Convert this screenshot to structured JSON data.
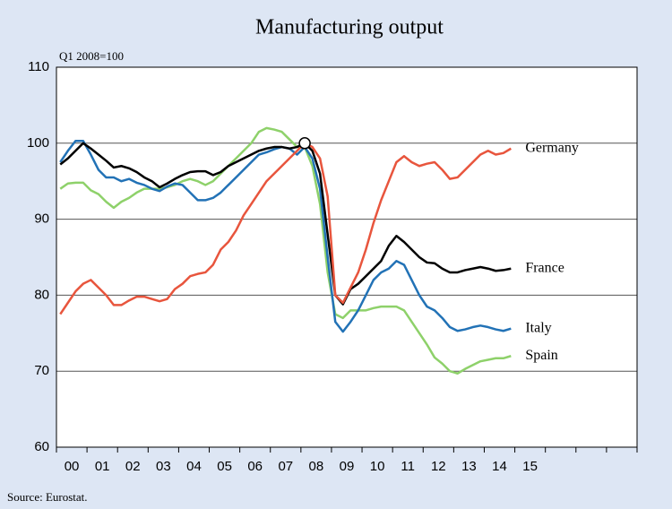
{
  "chart_data": {
    "type": "line",
    "title": "Manufacturing output",
    "y_unit": "Q1 2008=100",
    "source": "Source: Eurostat.",
    "x": [
      2000.125,
      2000.375,
      2000.625,
      2000.875,
      2001.125,
      2001.375,
      2001.625,
      2001.875,
      2002.125,
      2002.375,
      2002.625,
      2002.875,
      2003.125,
      2003.375,
      2003.625,
      2003.875,
      2004.125,
      2004.375,
      2004.625,
      2004.875,
      2005.125,
      2005.375,
      2005.625,
      2005.875,
      2006.125,
      2006.375,
      2006.625,
      2006.875,
      2007.125,
      2007.375,
      2007.625,
      2007.875,
      2008.125,
      2008.375,
      2008.625,
      2008.875,
      2009.125,
      2009.375,
      2009.625,
      2009.875,
      2010.125,
      2010.375,
      2010.625,
      2010.875,
      2011.125,
      2011.375,
      2011.625,
      2011.875,
      2012.125,
      2012.375,
      2012.625,
      2012.875,
      2013.125,
      2013.375,
      2013.625,
      2013.875,
      2014.125,
      2014.375,
      2014.625,
      2014.875
    ],
    "series": [
      {
        "name": "Germany",
        "color": "#e8553d",
        "values": [
          77.5,
          79,
          80.5,
          81.5,
          82,
          81,
          80,
          78.7,
          78.7,
          79.3,
          79.8,
          79.8,
          79.5,
          79.2,
          79.5,
          80.8,
          81.5,
          82.5,
          82.8,
          83,
          84,
          86,
          87,
          88.5,
          90.5,
          92,
          93.5,
          95,
          96,
          97,
          98,
          99,
          100,
          99.5,
          98,
          93,
          80,
          79,
          81,
          83,
          86,
          89.5,
          92.5,
          95,
          97.5,
          98.3,
          97.5,
          97,
          97.3,
          97.5,
          96.5,
          95.3,
          95.5,
          96.5,
          97.5,
          98.5,
          99,
          98.5,
          98.7,
          99.3
        ]
      },
      {
        "name": "France",
        "color": "#000000",
        "values": [
          97.2,
          98,
          99,
          100,
          99.3,
          98.5,
          97.7,
          96.8,
          97,
          96.7,
          96.2,
          95.5,
          95,
          94.2,
          94.7,
          95.3,
          95.8,
          96.2,
          96.3,
          96.3,
          95.8,
          96.2,
          97,
          97.5,
          98,
          98.5,
          99,
          99.3,
          99.5,
          99.5,
          99.3,
          99.5,
          100,
          99,
          96,
          88,
          80,
          78.8,
          80.8,
          81.5,
          82.5,
          83.5,
          84.5,
          86.5,
          87.8,
          87,
          86,
          85,
          84.3,
          84.2,
          83.5,
          83,
          83,
          83.3,
          83.5,
          83.7,
          83.5,
          83.2,
          83.3,
          83.5
        ]
      },
      {
        "name": "Italy",
        "color": "#2272b6",
        "values": [
          97.5,
          99,
          100.3,
          100.3,
          98.5,
          96.5,
          95.5,
          95.5,
          95,
          95.3,
          94.8,
          94.5,
          94,
          93.7,
          94.3,
          94.7,
          94.5,
          93.5,
          92.5,
          92.5,
          92.8,
          93.5,
          94.5,
          95.5,
          96.5,
          97.5,
          98.5,
          98.8,
          99.2,
          99.5,
          99.3,
          98.5,
          99.5,
          98,
          94,
          85,
          76.5,
          75.2,
          76.5,
          78,
          80,
          82,
          83,
          83.5,
          84.5,
          84,
          82,
          80,
          78.5,
          78,
          77,
          75.8,
          75.3,
          75.5,
          75.8,
          76,
          75.8,
          75.5,
          75.3,
          75.6
        ]
      },
      {
        "name": "Spain",
        "color": "#8ed16a",
        "values": [
          94,
          94.7,
          94.8,
          94.8,
          93.8,
          93.3,
          92.3,
          91.5,
          92.3,
          92.8,
          93.5,
          94,
          94,
          94,
          94.2,
          94.5,
          95,
          95.3,
          95,
          94.5,
          95,
          96,
          97,
          98,
          99,
          100,
          101.5,
          102,
          101.8,
          101.5,
          100.5,
          99.5,
          99.5,
          97,
          92,
          83,
          77.5,
          77,
          78,
          78,
          78,
          78.3,
          78.5,
          78.5,
          78.5,
          78,
          76.5,
          75,
          73.5,
          71.8,
          71,
          70,
          69.7,
          70.3,
          70.8,
          71.3,
          71.5,
          71.7,
          71.7,
          72
        ]
      }
    ],
    "annotation_point": {
      "x": 2008.125,
      "y": 100
    },
    "xlim": [
      2000,
      2019
    ],
    "xticks": [
      {
        "value": 2000.5,
        "label": "00"
      },
      {
        "value": 2001.5,
        "label": "01"
      },
      {
        "value": 2002.5,
        "label": "02"
      },
      {
        "value": 2003.5,
        "label": "03"
      },
      {
        "value": 2004.5,
        "label": "04"
      },
      {
        "value": 2005.5,
        "label": "05"
      },
      {
        "value": 2006.5,
        "label": "06"
      },
      {
        "value": 2007.5,
        "label": "07"
      },
      {
        "value": 2008.5,
        "label": "08"
      },
      {
        "value": 2009.5,
        "label": "09"
      },
      {
        "value": 2010.5,
        "label": "10"
      },
      {
        "value": 2011.5,
        "label": "11"
      },
      {
        "value": 2012.5,
        "label": "12"
      },
      {
        "value": 2013.5,
        "label": "13"
      },
      {
        "value": 2014.5,
        "label": "14"
      },
      {
        "value": 2015.5,
        "label": "15"
      }
    ],
    "xtick_marks": [
      2000,
      2001,
      2002,
      2003,
      2004,
      2005,
      2006,
      2007,
      2008,
      2009,
      2010,
      2011,
      2012,
      2013,
      2014,
      2015,
      2016,
      2017,
      2018,
      2019
    ],
    "ylim": [
      60,
      110
    ],
    "yticks": [
      60,
      70,
      80,
      90,
      100,
      110
    ],
    "grid": true
  }
}
